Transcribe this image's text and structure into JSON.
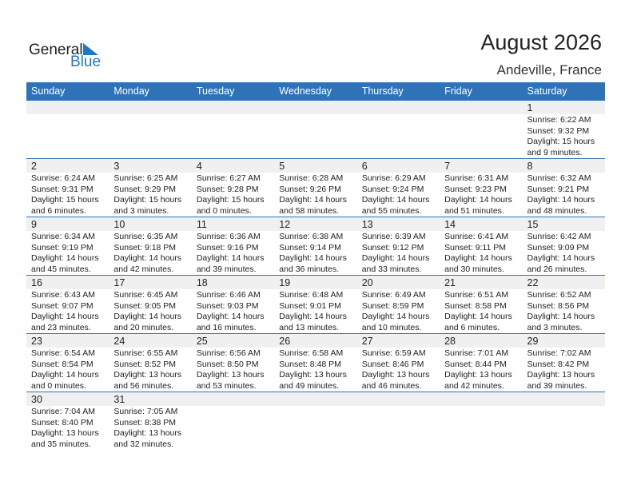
{
  "header": {
    "title": "August 2026",
    "location": "Andeville, France",
    "logo_general": "General",
    "logo_blue": "Blue"
  },
  "days": [
    "Sunday",
    "Monday",
    "Tuesday",
    "Wednesday",
    "Thursday",
    "Friday",
    "Saturday"
  ],
  "weeks": [
    [
      null,
      null,
      null,
      null,
      null,
      null,
      {
        "day": "1",
        "sunrise": "Sunrise: 6:22 AM",
        "sunset": "Sunset: 9:32 PM",
        "daylight": "Daylight: 15 hours",
        "minutes": "and 9 minutes."
      }
    ],
    [
      {
        "day": "2",
        "sunrise": "Sunrise: 6:24 AM",
        "sunset": "Sunset: 9:31 PM",
        "daylight": "Daylight: 15 hours",
        "minutes": "and 6 minutes."
      },
      {
        "day": "3",
        "sunrise": "Sunrise: 6:25 AM",
        "sunset": "Sunset: 9:29 PM",
        "daylight": "Daylight: 15 hours",
        "minutes": "and 3 minutes."
      },
      {
        "day": "4",
        "sunrise": "Sunrise: 6:27 AM",
        "sunset": "Sunset: 9:28 PM",
        "daylight": "Daylight: 15 hours",
        "minutes": "and 0 minutes."
      },
      {
        "day": "5",
        "sunrise": "Sunrise: 6:28 AM",
        "sunset": "Sunset: 9:26 PM",
        "daylight": "Daylight: 14 hours",
        "minutes": "and 58 minutes."
      },
      {
        "day": "6",
        "sunrise": "Sunrise: 6:29 AM",
        "sunset": "Sunset: 9:24 PM",
        "daylight": "Daylight: 14 hours",
        "minutes": "and 55 minutes."
      },
      {
        "day": "7",
        "sunrise": "Sunrise: 6:31 AM",
        "sunset": "Sunset: 9:23 PM",
        "daylight": "Daylight: 14 hours",
        "minutes": "and 51 minutes."
      },
      {
        "day": "8",
        "sunrise": "Sunrise: 6:32 AM",
        "sunset": "Sunset: 9:21 PM",
        "daylight": "Daylight: 14 hours",
        "minutes": "and 48 minutes."
      }
    ],
    [
      {
        "day": "9",
        "sunrise": "Sunrise: 6:34 AM",
        "sunset": "Sunset: 9:19 PM",
        "daylight": "Daylight: 14 hours",
        "minutes": "and 45 minutes."
      },
      {
        "day": "10",
        "sunrise": "Sunrise: 6:35 AM",
        "sunset": "Sunset: 9:18 PM",
        "daylight": "Daylight: 14 hours",
        "minutes": "and 42 minutes."
      },
      {
        "day": "11",
        "sunrise": "Sunrise: 6:36 AM",
        "sunset": "Sunset: 9:16 PM",
        "daylight": "Daylight: 14 hours",
        "minutes": "and 39 minutes."
      },
      {
        "day": "12",
        "sunrise": "Sunrise: 6:38 AM",
        "sunset": "Sunset: 9:14 PM",
        "daylight": "Daylight: 14 hours",
        "minutes": "and 36 minutes."
      },
      {
        "day": "13",
        "sunrise": "Sunrise: 6:39 AM",
        "sunset": "Sunset: 9:12 PM",
        "daylight": "Daylight: 14 hours",
        "minutes": "and 33 minutes."
      },
      {
        "day": "14",
        "sunrise": "Sunrise: 6:41 AM",
        "sunset": "Sunset: 9:11 PM",
        "daylight": "Daylight: 14 hours",
        "minutes": "and 30 minutes."
      },
      {
        "day": "15",
        "sunrise": "Sunrise: 6:42 AM",
        "sunset": "Sunset: 9:09 PM",
        "daylight": "Daylight: 14 hours",
        "minutes": "and 26 minutes."
      }
    ],
    [
      {
        "day": "16",
        "sunrise": "Sunrise: 6:43 AM",
        "sunset": "Sunset: 9:07 PM",
        "daylight": "Daylight: 14 hours",
        "minutes": "and 23 minutes."
      },
      {
        "day": "17",
        "sunrise": "Sunrise: 6:45 AM",
        "sunset": "Sunset: 9:05 PM",
        "daylight": "Daylight: 14 hours",
        "minutes": "and 20 minutes."
      },
      {
        "day": "18",
        "sunrise": "Sunrise: 6:46 AM",
        "sunset": "Sunset: 9:03 PM",
        "daylight": "Daylight: 14 hours",
        "minutes": "and 16 minutes."
      },
      {
        "day": "19",
        "sunrise": "Sunrise: 6:48 AM",
        "sunset": "Sunset: 9:01 PM",
        "daylight": "Daylight: 14 hours",
        "minutes": "and 13 minutes."
      },
      {
        "day": "20",
        "sunrise": "Sunrise: 6:49 AM",
        "sunset": "Sunset: 8:59 PM",
        "daylight": "Daylight: 14 hours",
        "minutes": "and 10 minutes."
      },
      {
        "day": "21",
        "sunrise": "Sunrise: 6:51 AM",
        "sunset": "Sunset: 8:58 PM",
        "daylight": "Daylight: 14 hours",
        "minutes": "and 6 minutes."
      },
      {
        "day": "22",
        "sunrise": "Sunrise: 6:52 AM",
        "sunset": "Sunset: 8:56 PM",
        "daylight": "Daylight: 14 hours",
        "minutes": "and 3 minutes."
      }
    ],
    [
      {
        "day": "23",
        "sunrise": "Sunrise: 6:54 AM",
        "sunset": "Sunset: 8:54 PM",
        "daylight": "Daylight: 14 hours",
        "minutes": "and 0 minutes."
      },
      {
        "day": "24",
        "sunrise": "Sunrise: 6:55 AM",
        "sunset": "Sunset: 8:52 PM",
        "daylight": "Daylight: 13 hours",
        "minutes": "and 56 minutes."
      },
      {
        "day": "25",
        "sunrise": "Sunrise: 6:56 AM",
        "sunset": "Sunset: 8:50 PM",
        "daylight": "Daylight: 13 hours",
        "minutes": "and 53 minutes."
      },
      {
        "day": "26",
        "sunrise": "Sunrise: 6:58 AM",
        "sunset": "Sunset: 8:48 PM",
        "daylight": "Daylight: 13 hours",
        "minutes": "and 49 minutes."
      },
      {
        "day": "27",
        "sunrise": "Sunrise: 6:59 AM",
        "sunset": "Sunset: 8:46 PM",
        "daylight": "Daylight: 13 hours",
        "minutes": "and 46 minutes."
      },
      {
        "day": "28",
        "sunrise": "Sunrise: 7:01 AM",
        "sunset": "Sunset: 8:44 PM",
        "daylight": "Daylight: 13 hours",
        "minutes": "and 42 minutes."
      },
      {
        "day": "29",
        "sunrise": "Sunrise: 7:02 AM",
        "sunset": "Sunset: 8:42 PM",
        "daylight": "Daylight: 13 hours",
        "minutes": "and 39 minutes."
      }
    ],
    [
      {
        "day": "30",
        "sunrise": "Sunrise: 7:04 AM",
        "sunset": "Sunset: 8:40 PM",
        "daylight": "Daylight: 13 hours",
        "minutes": "and 35 minutes."
      },
      {
        "day": "31",
        "sunrise": "Sunrise: 7:05 AM",
        "sunset": "Sunset: 8:38 PM",
        "daylight": "Daylight: 13 hours",
        "minutes": "and 32 minutes."
      },
      null,
      null,
      null,
      null,
      null
    ]
  ]
}
